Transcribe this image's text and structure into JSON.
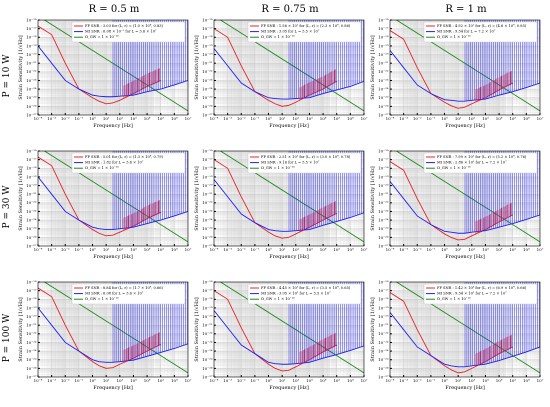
{
  "column_titles": [
    "R = 0.5 m",
    "R = 0.75 m",
    "R = 1 m"
  ],
  "row_titles": [
    "P = 10 W",
    "P = 30 W",
    "P = 100 W"
  ],
  "xlabel": "Frequency [Hz]",
  "ylabel": "Strain Sensitivity [1/√Hz]",
  "x_ticks": [
    "10⁻⁴",
    "10⁻³",
    "10⁻²",
    "10⁻¹",
    "10⁰",
    "10¹",
    "10²",
    "10³",
    "10⁴",
    "10⁵",
    "10⁶",
    "10⁷"
  ],
  "y_ticks": [
    "10⁻¹⁶",
    "10⁻¹⁷",
    "10⁻¹⁸",
    "10⁻¹⁹",
    "10⁻²⁰",
    "10⁻²¹",
    "10⁻²²",
    "10⁻²³",
    "10⁻²⁴",
    "10⁻²⁵",
    "10⁻²⁶",
    "10⁻²⁷"
  ],
  "colors": {
    "fp": "#e8232a",
    "mi": "#1f1ff0",
    "omega": "#1a8a1a",
    "grid": "#c9c9c9",
    "shade": "#e6e6e6"
  },
  "chart_data": [
    {
      "type": "line",
      "panel": "P = 10 W, R = 0.5 m",
      "legend": [
        "FP  SNR : 3.03 for (L, r) = (1.0 × 10⁴, 0.83)",
        "MI  SNR : 6.08 × 10⁻¹ for L = 3.6 × 10⁷",
        "Ω_GW = 1 × 10⁻¹⁶"
      ],
      "xlim": [
        0.0001,
        10000000.0
      ],
      "ylim": [
        1e-27,
        1e-16
      ],
      "x_log": true,
      "y_log": true,
      "grid": true,
      "series": [
        {
          "name": "FP",
          "x": [
            0.0001,
            0.001,
            0.01,
            0.1,
            1,
            3,
            10,
            30,
            100,
            1000.0,
            10000.0,
            100000.0
          ],
          "y": [
            2e-17,
            2e-18,
            1e-21,
            1e-24,
            1e-25,
            4e-26,
            2e-26,
            2.5e-26,
            5e-26,
            3e-25,
            2e-24,
            1e-23
          ]
        },
        {
          "name": "MI",
          "x": [
            0.0001,
            0.001,
            0.01,
            0.1,
            1,
            3,
            10,
            30,
            100,
            1000.0,
            10000.0,
            100000.0,
            1000000.0,
            10000000.0
          ],
          "y": [
            1e-19,
            1e-21,
            1e-23,
            1e-24,
            2e-25,
            1.5e-25,
            1.3e-25,
            1.3e-25,
            1.5e-25,
            2e-25,
            5e-25,
            1e-24,
            3e-24,
            1e-23
          ]
        },
        {
          "name": "Ω_GW",
          "x": [
            0.0001,
            10000000.0
          ],
          "y": [
            3e-16,
            3e-27
          ]
        }
      ]
    },
    {
      "type": "line",
      "panel": "P = 10 W, R = 0.75 m",
      "legend": [
        "FP  SNR : 1.56 × 10¹ for (L, r) = (2.3 × 10⁴, 0.86)",
        "MI  SNR : 3.05 for L = 5.5 × 10⁷",
        "Ω_GW = 1 × 10⁻¹⁶"
      ],
      "xlim": [
        0.0001,
        10000000.0
      ],
      "ylim": [
        1e-27,
        1e-16
      ],
      "x_log": true,
      "y_log": true,
      "grid": true,
      "series": [
        {
          "name": "FP",
          "x": [
            0.0001,
            0.001,
            0.01,
            0.1,
            1,
            3,
            10,
            30,
            100,
            1000.0,
            10000.0,
            100000.0
          ],
          "y": [
            1e-17,
            1e-18,
            5e-22,
            5e-25,
            5e-26,
            2e-26,
            1e-26,
            1.3e-26,
            3e-26,
            2e-25,
            1e-24,
            8e-24
          ]
        },
        {
          "name": "MI",
          "x": [
            0.0001,
            0.001,
            0.01,
            0.1,
            1,
            3,
            10,
            30,
            100,
            1000.0,
            10000.0,
            100000.0,
            1000000.0,
            10000000.0
          ],
          "y": [
            5e-20,
            5e-22,
            5e-24,
            5e-25,
            1e-25,
            8e-26,
            7e-26,
            7e-26,
            8e-26,
            1e-25,
            3e-25,
            8e-25,
            2e-24,
            8e-24
          ]
        },
        {
          "name": "Ω_GW",
          "x": [
            0.0001,
            10000000.0
          ],
          "y": [
            3e-16,
            3e-27
          ]
        }
      ]
    },
    {
      "type": "line",
      "panel": "P = 10 W, R = 1 m",
      "legend": [
        "FP  SNR : 4.92 × 10¹ for (L, r) = (4.6 × 10⁴, 0.85)",
        "MI  SNR : 9.54 for L = 7.2 × 10⁷",
        "Ω_GW = 1 × 10⁻¹⁶"
      ],
      "xlim": [
        0.0001,
        10000000.0
      ],
      "ylim": [
        1e-27,
        1e-16
      ],
      "x_log": true,
      "y_log": true,
      "grid": true,
      "series": [
        {
          "name": "FP",
          "x": [
            0.0001,
            0.001,
            0.01,
            0.1,
            1,
            3,
            10,
            30,
            100,
            1000.0,
            10000.0,
            100000.0
          ],
          "y": [
            6e-18,
            6e-19,
            3e-22,
            3e-25,
            3e-26,
            1.2e-26,
            6e-27,
            8e-27,
            2e-26,
            1e-25,
            8e-25,
            5e-24
          ]
        },
        {
          "name": "MI",
          "x": [
            0.0001,
            0.001,
            0.01,
            0.1,
            1,
            3,
            10,
            30,
            100,
            1000.0,
            10000.0,
            100000.0,
            1000000.0,
            10000000.0
          ],
          "y": [
            3e-20,
            3e-22,
            3e-24,
            3e-25,
            6e-26,
            5e-26,
            4e-26,
            4e-26,
            5e-26,
            7e-26,
            2e-25,
            5e-25,
            1.5e-24,
            5e-24
          ]
        },
        {
          "name": "Ω_GW",
          "x": [
            0.0001,
            10000000.0
          ],
          "y": [
            3e-16,
            3e-27
          ]
        }
      ]
    },
    {
      "type": "line",
      "panel": "P = 30 W, R = 0.5 m",
      "legend": [
        "FP  SNR : 5.01 for (L, r) = (1.3 × 10⁴, 0.79)",
        "MI  SNR : 1.82 for L = 3.6 × 10⁷",
        "Ω_GW = 1 × 10⁻¹⁶"
      ],
      "xlim": [
        0.0001,
        10000000.0
      ],
      "ylim": [
        1e-27,
        1e-16
      ],
      "x_log": true,
      "y_log": true,
      "grid": true,
      "series": [
        {
          "name": "FP",
          "x": [
            0.0001,
            0.001,
            0.01,
            0.1,
            1,
            3,
            10,
            30,
            100,
            1000.0,
            10000.0,
            100000.0
          ],
          "y": [
            2e-17,
            2e-18,
            1e-21,
            1e-24,
            8e-26,
            3e-26,
            1.5e-26,
            1.8e-26,
            4e-26,
            2e-25,
            1.5e-24,
            8e-24
          ]
        },
        {
          "name": "MI",
          "x": [
            0.0001,
            0.001,
            0.01,
            0.1,
            1,
            3,
            10,
            30,
            100,
            1000.0,
            10000.0,
            100000.0,
            1000000.0,
            10000000.0
          ],
          "y": [
            1e-19,
            1e-21,
            1e-23,
            1e-24,
            1.5e-25,
            1e-25,
            8e-26,
            8e-26,
            1e-25,
            1.5e-25,
            4e-25,
            1e-24,
            3e-24,
            1e-23
          ]
        },
        {
          "name": "Ω_GW",
          "x": [
            0.0001,
            10000000.0
          ],
          "y": [
            3e-16,
            3e-27
          ]
        }
      ]
    },
    {
      "type": "line",
      "panel": "P = 30 W, R = 0.75 m",
      "legend": [
        "FP  SNR : 2.51 × 10¹ for (L, r) = (3.0 × 10⁴, 0.78)",
        "MI  SNR : 9.16 for L = 5.5 × 10⁷",
        "Ω_GW = 1 × 10⁻¹⁶"
      ],
      "xlim": [
        0.0001,
        10000000.0
      ],
      "ylim": [
        1e-27,
        1e-16
      ],
      "x_log": true,
      "y_log": true,
      "grid": true,
      "series": [
        {
          "name": "FP",
          "x": [
            0.0001,
            0.001,
            0.01,
            0.1,
            1,
            3,
            10,
            30,
            100,
            1000.0,
            10000.0,
            100000.0
          ],
          "y": [
            1e-17,
            1e-18,
            5e-22,
            5e-25,
            4e-26,
            1.5e-26,
            8e-27,
            1e-26,
            2.5e-26,
            1.5e-25,
            1e-24,
            6e-24
          ]
        },
        {
          "name": "MI",
          "x": [
            0.0001,
            0.001,
            0.01,
            0.1,
            1,
            3,
            10,
            30,
            100,
            1000.0,
            10000.0,
            100000.0,
            1000000.0,
            10000000.0
          ],
          "y": [
            5e-20,
            5e-22,
            5e-24,
            5e-25,
            8e-26,
            6e-26,
            5e-26,
            5e-26,
            6e-26,
            8e-26,
            2.5e-25,
            7e-25,
            2e-24,
            7e-24
          ]
        },
        {
          "name": "Ω_GW",
          "x": [
            0.0001,
            10000000.0
          ],
          "y": [
            3e-16,
            3e-27
          ]
        }
      ]
    },
    {
      "type": "line",
      "panel": "P = 30 W, R = 1 m",
      "legend": [
        "FP  SNR : 7.99 × 10¹ for (L, r) = (5.2 × 10⁴, 0.76)",
        "MI  SNR : 2.86 × 10¹ for L = 7.2 × 10⁷",
        "Ω_GW = 1 × 10⁻¹⁶"
      ],
      "xlim": [
        0.0001,
        10000000.0
      ],
      "ylim": [
        1e-27,
        1e-16
      ],
      "x_log": true,
      "y_log": true,
      "grid": true,
      "series": [
        {
          "name": "FP",
          "x": [
            0.0001,
            0.001,
            0.01,
            0.1,
            1,
            3,
            10,
            30,
            100,
            1000.0,
            10000.0,
            100000.0
          ],
          "y": [
            6e-18,
            6e-19,
            3e-22,
            3e-25,
            2.5e-26,
            1e-26,
            5e-27,
            6e-27,
            1.5e-26,
            8e-26,
            6e-25,
            4e-24
          ]
        },
        {
          "name": "MI",
          "x": [
            0.0001,
            0.001,
            0.01,
            0.1,
            1,
            3,
            10,
            30,
            100,
            1000.0,
            10000.0,
            100000.0,
            1000000.0,
            10000000.0
          ],
          "y": [
            3e-20,
            3e-22,
            3e-24,
            3e-25,
            5e-26,
            4e-26,
            3e-26,
            3e-26,
            4e-26,
            6e-26,
            1.5e-25,
            4e-25,
            1.2e-24,
            4e-24
          ]
        },
        {
          "name": "Ω_GW",
          "x": [
            0.0001,
            10000000.0
          ],
          "y": [
            3e-16,
            3e-27
          ]
        }
      ]
    },
    {
      "type": "line",
      "panel": "P = 100 W, R = 0.5 m",
      "legend": [
        "FP  SNR : 8.84 for (L, r) = (1.7 × 10⁴, 0.66)",
        "MI  SNR : 6.08 for L = 3.6 × 10⁷",
        "Ω_GW = 1 × 10⁻¹⁶"
      ],
      "xlim": [
        0.0001,
        10000000.0
      ],
      "ylim": [
        1e-27,
        1e-16
      ],
      "x_log": true,
      "y_log": true,
      "grid": true,
      "series": [
        {
          "name": "FP",
          "x": [
            0.0001,
            0.001,
            0.01,
            0.1,
            1,
            3,
            10,
            30,
            100,
            1000.0,
            10000.0,
            100000.0
          ],
          "y": [
            2e-17,
            2e-18,
            1e-21,
            1e-24,
            6e-26,
            2e-26,
            1e-26,
            1.2e-26,
            3e-26,
            1.5e-25,
            1e-24,
            6e-24
          ]
        },
        {
          "name": "MI",
          "x": [
            0.0001,
            0.001,
            0.01,
            0.1,
            1,
            3,
            10,
            30,
            100,
            1000.0,
            10000.0,
            100000.0,
            1000000.0,
            10000000.0
          ],
          "y": [
            1e-19,
            1e-21,
            1e-23,
            1e-24,
            1e-25,
            6e-26,
            5e-26,
            5e-26,
            6e-26,
            9e-26,
            2.5e-25,
            7e-25,
            2e-24,
            7e-24
          ]
        },
        {
          "name": "Ω_GW",
          "x": [
            0.0001,
            10000000.0
          ],
          "y": [
            3e-16,
            3e-27
          ]
        }
      ]
    },
    {
      "type": "line",
      "panel": "P = 100 W, R = 0.75 m",
      "legend": [
        "FP  SNR : 4.45 × 10¹ for (L, r) = (3.5 × 10⁴, 0.65)",
        "MI  SNR : 3.05 × 10¹ for L = 5.5 × 10⁷",
        "Ω_GW = 1 × 10⁻¹⁶"
      ],
      "xlim": [
        0.0001,
        10000000.0
      ],
      "ylim": [
        1e-27,
        1e-16
      ],
      "x_log": true,
      "y_log": true,
      "grid": true,
      "series": [
        {
          "name": "FP",
          "x": [
            0.0001,
            0.001,
            0.01,
            0.1,
            1,
            3,
            10,
            30,
            100,
            1000.0,
            10000.0,
            100000.0
          ],
          "y": [
            1e-17,
            1e-18,
            5e-22,
            5e-25,
            3e-26,
            1e-26,
            5e-27,
            6e-27,
            1.5e-26,
            1e-25,
            8e-25,
            5e-24
          ]
        },
        {
          "name": "MI",
          "x": [
            0.0001,
            0.001,
            0.01,
            0.1,
            1,
            3,
            10,
            30,
            100,
            1000.0,
            10000.0,
            100000.0,
            1000000.0,
            10000000.0
          ],
          "y": [
            5e-20,
            5e-22,
            5e-24,
            5e-25,
            5e-26,
            3.5e-26,
            3e-26,
            3e-26,
            3.5e-26,
            5e-26,
            1.5e-25,
            4e-25,
            1.2e-24,
            4e-24
          ]
        },
        {
          "name": "Ω_GW",
          "x": [
            0.0001,
            10000000.0
          ],
          "y": [
            3e-16,
            3e-27
          ]
        }
      ]
    },
    {
      "type": "line",
      "panel": "P = 100 W, R = 1 m",
      "legend": [
        "FP  SNR : 1.42 × 10² for (L, r) = (6.9 × 10⁴, 0.66)",
        "MI  SNR : 9.54 × 10¹ for L = 7.2 × 10⁷",
        "Ω_GW = 1 × 10⁻¹⁶"
      ],
      "xlim": [
        0.0001,
        10000000.0
      ],
      "ylim": [
        1e-27,
        1e-16
      ],
      "x_log": true,
      "y_log": true,
      "grid": true,
      "series": [
        {
          "name": "FP",
          "x": [
            0.0001,
            0.001,
            0.01,
            0.1,
            1,
            3,
            10,
            30,
            100,
            1000.0,
            10000.0,
            100000.0
          ],
          "y": [
            6e-18,
            6e-19,
            3e-22,
            3e-25,
            2e-26,
            7e-27,
            3e-27,
            4e-27,
            1e-26,
            6e-26,
            5e-25,
            3e-24
          ]
        },
        {
          "name": "MI",
          "x": [
            0.0001,
            0.001,
            0.01,
            0.1,
            1,
            3,
            10,
            30,
            100,
            1000.0,
            10000.0,
            100000.0,
            1000000.0,
            10000000.0
          ],
          "y": [
            3e-20,
            3e-22,
            3e-24,
            3e-25,
            3e-26,
            2e-26,
            1.5e-26,
            1.5e-26,
            2e-26,
            3e-26,
            8e-26,
            2.5e-25,
            8e-25,
            3e-24
          ]
        },
        {
          "name": "Ω_GW",
          "x": [
            0.0001,
            10000000.0
          ],
          "y": [
            3e-16,
            3e-27
          ]
        }
      ]
    }
  ]
}
